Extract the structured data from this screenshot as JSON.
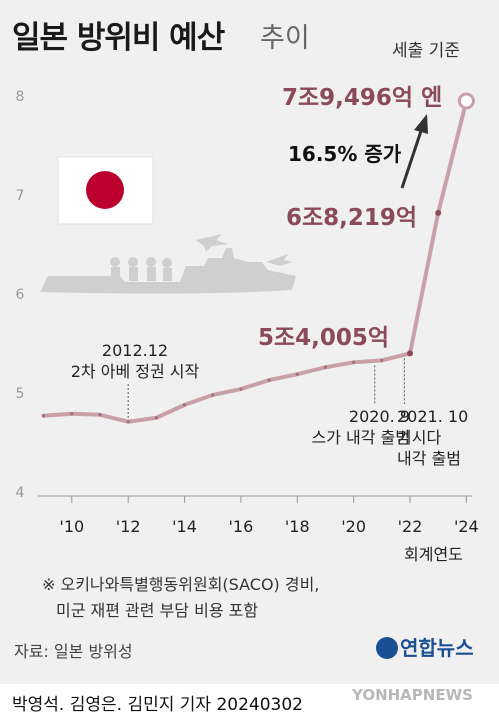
{
  "header": {
    "title": "일본 방위비 예산",
    "subtitle": "추이",
    "unit_note": "세출 기준"
  },
  "chart_data": {
    "type": "line",
    "title": "일본 방위비 예산",
    "subtitle": "추이",
    "xlabel": "회계연도",
    "ylabel": "",
    "xlim": [
      2008.8,
      2024.2
    ],
    "ylim": [
      4,
      8
    ],
    "y_ticks": [
      4,
      5,
      6,
      7,
      8
    ],
    "y_tick_labels": [
      "4",
      "5",
      "6",
      "7",
      "8"
    ],
    "x_ticks": [
      2010,
      2012,
      2014,
      2016,
      2018,
      2020,
      2022,
      2024
    ],
    "x_tick_labels": [
      "'10",
      "'12",
      "'14",
      "'16",
      "'18",
      "'20",
      "'22",
      "'24"
    ],
    "grid": false,
    "series": [
      {
        "x": [
          2009,
          2010,
          2011,
          2012,
          2013,
          2014,
          2015,
          2016,
          2017,
          2018,
          2019,
          2020,
          2021,
          2022,
          2023,
          2024
        ],
        "values": [
          4.77,
          4.79,
          4.78,
          4.71,
          4.75,
          4.88,
          4.98,
          5.04,
          5.13,
          5.19,
          5.26,
          5.31,
          5.33,
          5.4,
          6.82,
          7.95
        ]
      }
    ],
    "data_labels": [
      {
        "x": 2022,
        "text": "5조4,005억"
      },
      {
        "x": 2023,
        "text": "6조8,219억"
      },
      {
        "x": 2024,
        "text": "7조9,496억 엔"
      }
    ],
    "annotations": [
      {
        "x": 2012,
        "text": [
          "2012.12",
          "2차 아베 정권 시작"
        ]
      },
      {
        "x": 2020.75,
        "text": [
          "2020. 9",
          "스가 내각 출범"
        ]
      },
      {
        "x": 2021.8,
        "text": [
          "2021. 10",
          "기시다",
          "내각 출범"
        ]
      },
      {
        "text": "16.5% 증가",
        "arrow": true
      }
    ]
  },
  "footnote": [
    "※ 오키나와특별행동위원회(SACO) 경비,",
    "미군 재편 관련 부담 비용 포함"
  ],
  "source": "자료: 일본 방위성",
  "logo": "연합뉴스",
  "byline": "박영석. 김영은. 김민지 기자  20240302",
  "watermark": "YONHAPNEWS",
  "colors": {
    "line": "#c9a0a8",
    "point": "#8a4a5a",
    "label": "#8a4a5a",
    "flag_red": "#bc002d",
    "silhouette": "#cfcfcf"
  },
  "icons": [
    "japan-flag-icon",
    "military-silhouette-icon",
    "arrow-up-icon",
    "yonhap-logo-icon"
  ]
}
